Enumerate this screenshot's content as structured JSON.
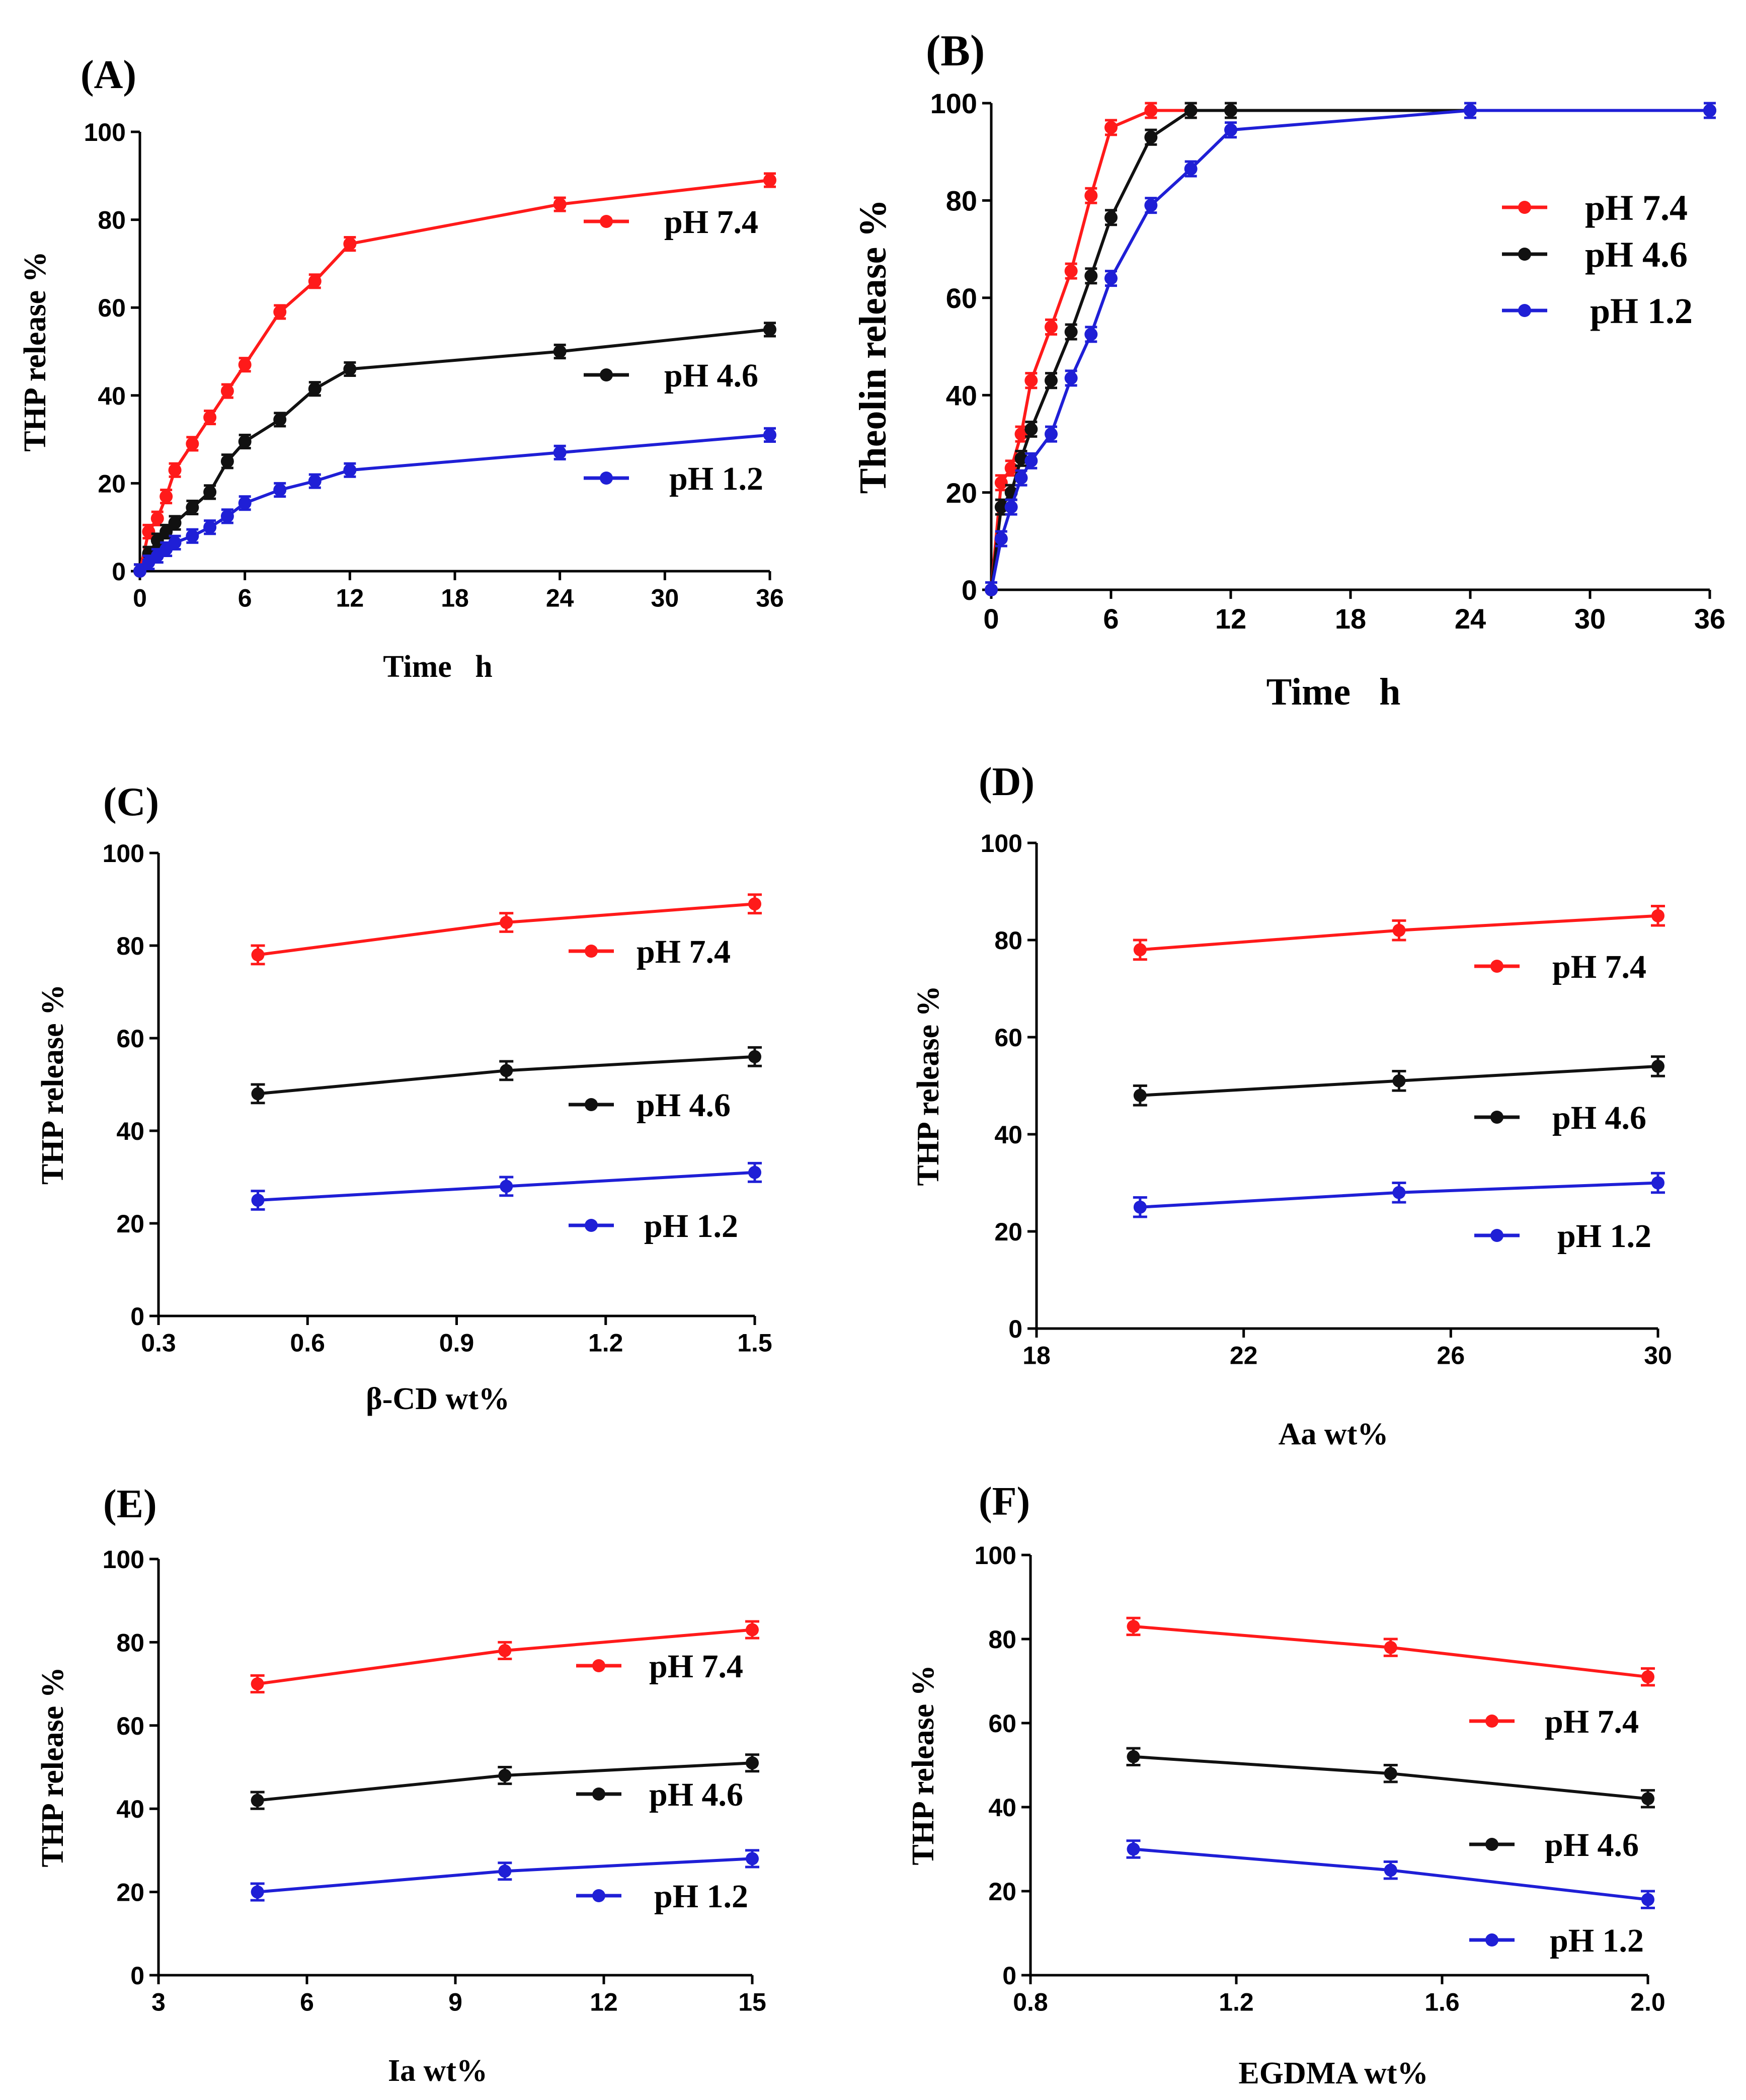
{
  "figure": {
    "colors": {
      "pH 7.4": "#ff1a1a",
      "pH 4.6": "#111111",
      "pH 1.2": "#1f1fd6"
    }
  },
  "chart_data": [
    {
      "panel": "(A)",
      "type": "line",
      "title": "(A)",
      "xlabel": "Time   h",
      "ylabel": "THP release %",
      "xlim": [
        0,
        36
      ],
      "ylim": [
        0,
        100
      ],
      "xticks": [
        "0",
        "6",
        "12",
        "18",
        "24",
        "30",
        "36"
      ],
      "yticks": [
        "0",
        "20",
        "40",
        "60",
        "80",
        "100"
      ],
      "legend_position": "right",
      "series": [
        {
          "name": "pH 7.4",
          "color": "#ff1a1a",
          "x": [
            0,
            0.5,
            1,
            1.5,
            2,
            3,
            4,
            5,
            6,
            8,
            10,
            12,
            24,
            36
          ],
          "y": [
            0,
            9,
            12,
            17,
            23,
            29,
            35,
            41,
            47,
            59,
            66,
            74.5,
            83.5,
            89
          ],
          "err": 1.5
        },
        {
          "name": "pH 4.6",
          "color": "#111111",
          "x": [
            0,
            0.5,
            1,
            1.5,
            2,
            3,
            4,
            5,
            6,
            8,
            10,
            12,
            24,
            36
          ],
          "y": [
            0,
            4,
            7,
            9,
            11,
            14.5,
            18,
            25,
            29.5,
            34.5,
            41.5,
            46,
            50,
            55
          ],
          "err": 1.5
        },
        {
          "name": "pH 1.2",
          "color": "#1f1fd6",
          "x": [
            0,
            0.5,
            1,
            1.5,
            2,
            3,
            4,
            5,
            6,
            8,
            10,
            12,
            24,
            36
          ],
          "y": [
            0,
            2,
            3.5,
            5,
            6.5,
            8,
            10,
            12.5,
            15.5,
            18.5,
            20.5,
            23,
            27,
            31
          ],
          "err": 1.5
        }
      ]
    },
    {
      "panel": "(B)",
      "type": "line",
      "title": "(B)",
      "xlabel": "Time   h",
      "ylabel": "Theolin release %",
      "xlim": [
        0,
        36
      ],
      "ylim": [
        0,
        100
      ],
      "xticks": [
        "0",
        "6",
        "12",
        "18",
        "24",
        "30",
        "36"
      ],
      "yticks": [
        "0",
        "20",
        "40",
        "60",
        "80",
        "100"
      ],
      "legend_position": "right",
      "series": [
        {
          "name": "pH 7.4",
          "color": "#ff1a1a",
          "x": [
            0,
            0.5,
            1,
            1.5,
            2,
            3,
            4,
            5,
            6,
            8,
            10
          ],
          "y": [
            0,
            22,
            25,
            32,
            43,
            54,
            65.5,
            81,
            95,
            98.5,
            98.5
          ],
          "err": 1.5
        },
        {
          "name": "pH 4.6",
          "color": "#111111",
          "x": [
            0,
            0.5,
            1,
            1.5,
            2,
            3,
            4,
            5,
            6,
            8,
            10,
            12,
            24,
            36
          ],
          "y": [
            0,
            17,
            20,
            27,
            33,
            43,
            53,
            64.5,
            76.5,
            93,
            98.5,
            98.5,
            98.5,
            98.5
          ],
          "err": 1.5
        },
        {
          "name": "pH 1.2",
          "color": "#1f1fd6",
          "x": [
            0,
            0.5,
            1,
            1.5,
            2,
            3,
            4,
            5,
            6,
            8,
            10,
            12,
            24,
            36
          ],
          "y": [
            0,
            10.5,
            17,
            23,
            26.5,
            32,
            43.5,
            52.5,
            64,
            79,
            86.5,
            94.5,
            98.5,
            98.5
          ],
          "err": 1.5
        }
      ]
    },
    {
      "panel": "(C)",
      "type": "line",
      "title": "(C)",
      "xlabel": "β-CD wt%",
      "ylabel": "THP release %",
      "xlim": [
        0.3,
        1.5
      ],
      "ylim": [
        0,
        100
      ],
      "xticks": [
        "0.3",
        "0.6",
        "0.9",
        "1.2",
        "1.5"
      ],
      "yticks": [
        "0",
        "20",
        "40",
        "60",
        "80",
        "100"
      ],
      "legend_position": "right",
      "series": [
        {
          "name": "pH 7.4",
          "color": "#ff1a1a",
          "x": [
            0.5,
            1.0,
            1.5
          ],
          "y": [
            78,
            85,
            89
          ],
          "err": 2
        },
        {
          "name": "pH 4.6",
          "color": "#111111",
          "x": [
            0.5,
            1.0,
            1.5
          ],
          "y": [
            48,
            53,
            56
          ],
          "err": 2
        },
        {
          "name": "pH 1.2",
          "color": "#1f1fd6",
          "x": [
            0.5,
            1.0,
            1.5
          ],
          "y": [
            25,
            28,
            31
          ],
          "err": 2
        }
      ]
    },
    {
      "panel": "(D)",
      "type": "line",
      "title": "(D)",
      "xlabel": "Aa wt%",
      "ylabel": "THP release %",
      "xlim": [
        18,
        30
      ],
      "ylim": [
        0,
        100
      ],
      "xticks": [
        "18",
        "22",
        "26",
        "30"
      ],
      "yticks": [
        "0",
        "20",
        "40",
        "60",
        "80",
        "100"
      ],
      "legend_position": "right",
      "series": [
        {
          "name": "pH 7.4",
          "color": "#ff1a1a",
          "x": [
            20,
            25,
            30
          ],
          "y": [
            78,
            82,
            85
          ],
          "err": 2
        },
        {
          "name": "pH 4.6",
          "color": "#111111",
          "x": [
            20,
            25,
            30
          ],
          "y": [
            48,
            51,
            54
          ],
          "err": 2
        },
        {
          "name": "pH 1.2",
          "color": "#1f1fd6",
          "x": [
            20,
            25,
            30
          ],
          "y": [
            25,
            28,
            30
          ],
          "err": 2
        }
      ]
    },
    {
      "panel": "(E)",
      "type": "line",
      "title": "(E)",
      "xlabel": "Ia wt%",
      "ylabel": "THP release %",
      "xlim": [
        3,
        15
      ],
      "ylim": [
        0,
        100
      ],
      "xticks": [
        "3",
        "6",
        "9",
        "12",
        "15"
      ],
      "yticks": [
        "0",
        "20",
        "40",
        "60",
        "80",
        "100"
      ],
      "legend_position": "right",
      "series": [
        {
          "name": "pH 7.4",
          "color": "#ff1a1a",
          "x": [
            5,
            10,
            15
          ],
          "y": [
            70,
            78,
            83
          ],
          "err": 2
        },
        {
          "name": "pH 4.6",
          "color": "#111111",
          "x": [
            5,
            10,
            15
          ],
          "y": [
            42,
            48,
            51
          ],
          "err": 2
        },
        {
          "name": "pH 1.2",
          "color": "#1f1fd6",
          "x": [
            5,
            10,
            15
          ],
          "y": [
            20,
            25,
            28
          ],
          "err": 2
        }
      ]
    },
    {
      "panel": "(F)",
      "type": "line",
      "title": "(F)",
      "xlabel": "EGDMA wt%",
      "ylabel": "THP release %",
      "xlim": [
        0.8,
        2.0
      ],
      "ylim": [
        0,
        100
      ],
      "xticks": [
        "0.8",
        "1.2",
        "1.6",
        "2.0"
      ],
      "yticks": [
        "0",
        "20",
        "40",
        "60",
        "80",
        "100"
      ],
      "legend_position": "right",
      "series": [
        {
          "name": "pH 7.4",
          "color": "#ff1a1a",
          "x": [
            1.0,
            1.5,
            2.0
          ],
          "y": [
            83,
            78,
            71
          ],
          "err": 2
        },
        {
          "name": "pH 4.6",
          "color": "#111111",
          "x": [
            1.0,
            1.5,
            2.0
          ],
          "y": [
            52,
            48,
            42
          ],
          "err": 2
        },
        {
          "name": "pH 1.2",
          "color": "#1f1fd6",
          "x": [
            1.0,
            1.5,
            2.0
          ],
          "y": [
            30,
            25,
            18
          ],
          "err": 2
        }
      ]
    }
  ]
}
